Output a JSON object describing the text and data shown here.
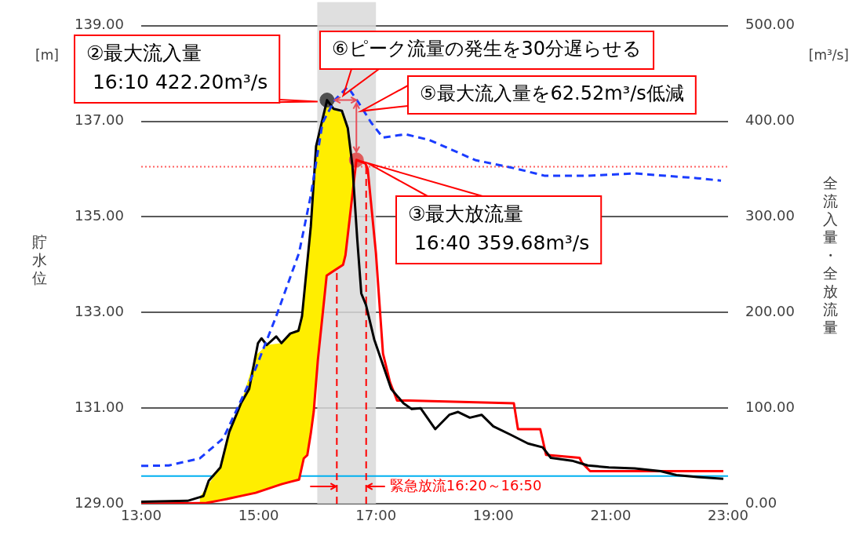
{
  "chart_data": {
    "type": "line",
    "ylabel": "貯水位",
    "y2label": "全流入量・全放流量",
    "xlim": [
      13,
      23
    ],
    "xticks": [
      {
        "value": 13,
        "label": "13:00"
      },
      {
        "value": 15,
        "label": "15:00"
      },
      {
        "value": 17,
        "label": "17:00"
      },
      {
        "value": 19,
        "label": "19:00"
      },
      {
        "value": 21,
        "label": "21:00"
      },
      {
        "value": 23,
        "label": "23:00"
      }
    ],
    "ylim": [
      129,
      139
    ],
    "yticks": [
      {
        "value": 129,
        "label": "129.00"
      },
      {
        "value": 131,
        "label": "131.00"
      },
      {
        "value": 133,
        "label": "133.00"
      },
      {
        "value": 135,
        "label": "135.00"
      },
      {
        "value": 137,
        "label": "137.00"
      },
      {
        "value": 139,
        "label": "139.00"
      }
    ],
    "y2lim": [
      0,
      500
    ],
    "y2ticks": [
      {
        "value": 0,
        "label": "0.00"
      },
      {
        "value": 100,
        "label": "100.00"
      },
      {
        "value": 200,
        "label": "200.00"
      },
      {
        "value": 300,
        "label": "300.00"
      },
      {
        "value": 400,
        "label": "400.00"
      },
      {
        "value": 500,
        "label": "500.00"
      }
    ],
    "grid": "y",
    "legend": false,
    "series": [
      {
        "type": "line",
        "axis": "y",
        "color": "#1a3cff",
        "line_style": "dashed",
        "x": [
          13.0,
          13.47,
          14.0,
          14.4,
          14.7,
          14.95,
          15.3,
          15.69,
          15.89,
          16.09,
          16.3,
          16.52,
          16.7,
          16.92,
          17.12,
          17.5,
          17.91,
          18.69,
          19.39,
          19.88,
          20.6,
          21.41,
          21.94,
          22.48,
          22.88
        ],
        "values": [
          129.79,
          129.8,
          129.95,
          130.37,
          131.16,
          131.83,
          132.92,
          134.25,
          135.45,
          136.97,
          137.45,
          137.72,
          137.4,
          136.97,
          136.66,
          136.73,
          136.61,
          136.19,
          136.01,
          135.86,
          135.86,
          135.91,
          135.86,
          135.81,
          135.76
        ]
      },
      {
        "type": "line",
        "axis": "y2",
        "color": "#000000",
        "x": [
          13.0,
          13.79,
          14.06,
          14.15,
          14.35,
          14.5,
          14.7,
          14.84,
          14.99,
          15.05,
          15.14,
          15.3,
          15.39,
          15.54,
          15.68,
          15.74,
          15.89,
          15.98,
          16.1667,
          16.28,
          16.42,
          16.52,
          16.6,
          16.68,
          16.75,
          16.83,
          16.97,
          17.12,
          17.26,
          17.47,
          17.61,
          17.76,
          18.01,
          18.25,
          18.4,
          18.6,
          18.8,
          19.0,
          19.3,
          19.59,
          19.84,
          19.98,
          20.34,
          20.61,
          20.97,
          21.41,
          21.85,
          22.12,
          22.48,
          22.92
        ],
        "values": [
          2,
          3,
          8,
          24,
          38,
          75,
          105,
          120,
          168,
          173,
          166,
          175,
          168,
          178,
          181,
          196,
          290,
          374,
          422.2,
          413,
          411,
          393,
          353,
          278,
          220,
          208,
          172,
          145,
          120,
          105,
          99,
          100,
          78,
          93,
          96,
          90,
          93,
          81,
          72,
          63,
          59,
          48,
          45,
          40,
          38,
          37,
          34,
          30,
          28,
          26
        ]
      },
      {
        "type": "line",
        "axis": "y2",
        "color": "#ff0000",
        "x": [
          13.0,
          14.0,
          14.11,
          14.35,
          14.46,
          14.7,
          14.95,
          15.14,
          15.39,
          15.54,
          15.69,
          15.77,
          15.83,
          15.89,
          15.94,
          16.01,
          16.1,
          16.16,
          16.28,
          16.44,
          16.48,
          16.55,
          16.62,
          16.6667,
          16.82,
          16.86,
          17.0,
          17.12,
          17.24,
          17.36,
          17.56,
          19.35,
          19.42,
          19.8,
          19.9,
          20.47,
          20.51,
          20.65,
          22.92
        ],
        "values": [
          0,
          0.7,
          0.8,
          3.6,
          4.9,
          8.1,
          11.4,
          15.3,
          20.4,
          22.9,
          25.3,
          47.4,
          50.7,
          73.6,
          96.4,
          150.3,
          203,
          238.6,
          243.5,
          250,
          259.8,
          297,
          334.6,
          359.68,
          356,
          350,
          262,
          157,
          127,
          108,
          108,
          105,
          78,
          78,
          51,
          48,
          43,
          34,
          34
        ],
        "upper": [
          null,
          7,
          17,
          38,
          65,
          105,
          155,
          166,
          168,
          178,
          183,
          215,
          252,
          290,
          337,
          381,
          405,
          420,
          413,
          408,
          400,
          378,
          335,
          null,
          null,
          null,
          null,
          null,
          null,
          null,
          null,
          null,
          null,
          null,
          null,
          null,
          null,
          null,
          null
        ],
        "lower": [
          null,
          0.7,
          0.8,
          3.6,
          4.9,
          8.1,
          11.4,
          15.3,
          20.4,
          22.9,
          25.3,
          47.4,
          50.7,
          73.6,
          96.4,
          150.3,
          203,
          238.6,
          243.5,
          250,
          259.8,
          297,
          334.6,
          null,
          null,
          null,
          null,
          null,
          null,
          null,
          null,
          null,
          null,
          null,
          null,
          null,
          null,
          null,
          null
        ]
      },
      {
        "type": "scatter",
        "axis": "y2",
        "color": "#505050",
        "marker": "circle",
        "x": [
          16.1667
        ],
        "values": [
          422.2
        ]
      },
      {
        "type": "scatter",
        "axis": "y2",
        "color": "#e05a5a",
        "marker": "circle",
        "x": [
          16.6667
        ],
        "values": [
          359.68
        ]
      }
    ],
    "bands": [
      {
        "axis": "x",
        "from": 16,
        "to": 17,
        "color": "#d9d9d9"
      }
    ],
    "ref_lines": [
      {
        "axis": "y",
        "value": 136.05,
        "color": "#ff6060",
        "line_style": "dotted"
      },
      {
        "axis": "y2",
        "value": 29,
        "color": "#00b0f0",
        "line_style": "solid"
      },
      {
        "axis": "x",
        "value": 16.3333,
        "color": "#ff0000",
        "line_style": "dashed"
      },
      {
        "axis": "x",
        "value": 16.8333,
        "color": "#ff0000",
        "line_style": "dashed"
      }
    ],
    "annotations": [
      "[m]",
      "[m³/s]",
      "②最大流入量\n 16:10 422.20m³/s",
      "⑥ピーク流量の発生を30分遅らせる",
      "⑤最大流入量を62.52m³/s低減",
      "③最大放流量\n 16:40 359.68m³/s",
      "緊急放流16:20～16:50"
    ]
  }
}
